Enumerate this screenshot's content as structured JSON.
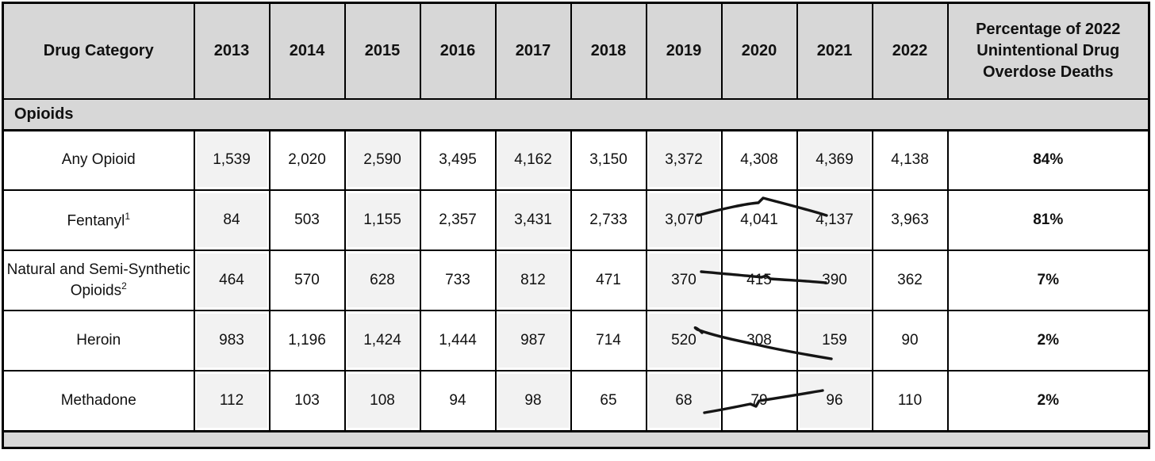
{
  "table": {
    "header": {
      "drug_category": "Drug Category",
      "years": [
        "2013",
        "2014",
        "2015",
        "2016",
        "2017",
        "2018",
        "2019",
        "2020",
        "2021",
        "2022"
      ],
      "percentage": "Percentage of 2022 Unintentional Drug Overdose Deaths"
    },
    "section": {
      "label": "Opioids"
    },
    "rows": [
      {
        "label": "Any Opioid",
        "sup": "",
        "values": [
          "1,539",
          "2,020",
          "2,590",
          "3,495",
          "4,162",
          "3,150",
          "3,372",
          "4,308",
          "4,369",
          "4,138"
        ],
        "percentage": "84%"
      },
      {
        "label": "Fentanyl",
        "sup": "1",
        "values": [
          "84",
          "503",
          "1,155",
          "2,357",
          "3,431",
          "2,733",
          "3,070",
          "4,041",
          "4,137",
          "3,963"
        ],
        "percentage": "81%"
      },
      {
        "label": "Natural and Semi-Synthetic Opioids",
        "sup": "2",
        "values": [
          "464",
          "570",
          "628",
          "733",
          "812",
          "471",
          "370",
          "415",
          "390",
          "362"
        ],
        "percentage": "7%"
      },
      {
        "label": "Heroin",
        "sup": "",
        "values": [
          "983",
          "1,196",
          "1,424",
          "1,444",
          "987",
          "714",
          "520",
          "308",
          "159",
          "90"
        ],
        "percentage": "2%"
      },
      {
        "label": "Methadone",
        "sup": "",
        "values": [
          "112",
          "103",
          "108",
          "94",
          "98",
          "65",
          "68",
          "79",
          "96",
          "110"
        ],
        "percentage": "2%"
      }
    ],
    "annotations": [
      {
        "row": "Fentanyl",
        "description": "hand-drawn pen line over 2020-2022 values rising then falling (peak at 2021)"
      },
      {
        "row": "Natural and Semi-Synthetic Opioids",
        "description": "hand-drawn pen line over 2020-2022 values sloping gently downward"
      },
      {
        "row": "Heroin",
        "description": "hand-drawn pen line sloping steeply downward, striking through the 90 value"
      },
      {
        "row": "Methadone",
        "description": "hand-drawn pen line over 2020-2022 values sloping upward"
      }
    ],
    "colors": {
      "header_bg": "#d7d7d7",
      "stripe_bg": "#f2f2f2",
      "percentage_bg": "#d7d7d7",
      "border": "#000000",
      "pen_ink": "#151515"
    }
  }
}
